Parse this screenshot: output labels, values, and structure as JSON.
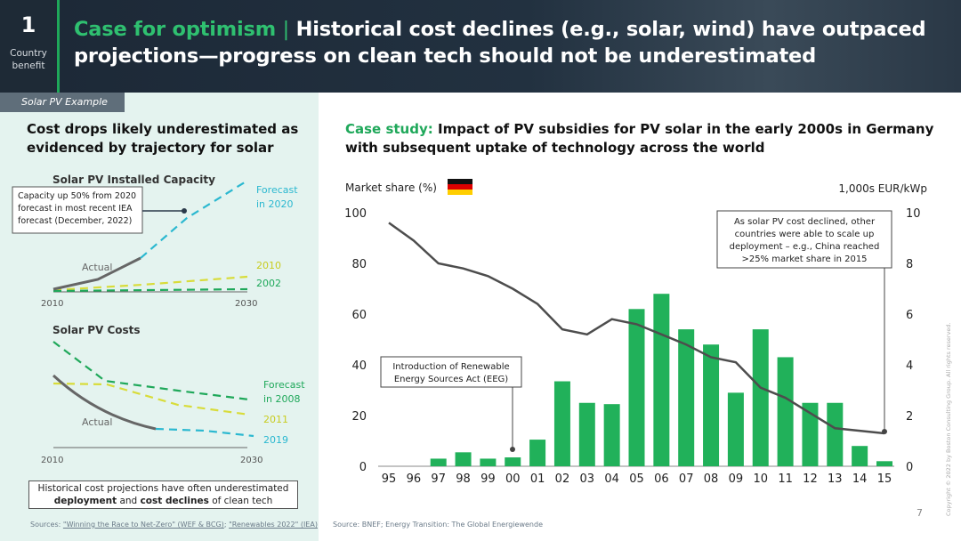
{
  "header": {
    "number": "1",
    "label_line1": "Country",
    "label_line2": "benefit",
    "title_highlight": "Case for optimism",
    "title_separator": "|",
    "title_rest": "Historical cost declines (e.g., solar, wind) have outpaced projections—progress on clean tech should not be underestimated"
  },
  "tag": "Solar PV Example",
  "left": {
    "heading": "Cost drops likely underestimated as evidenced by trajectory for solar",
    "capacity": {
      "title": "Solar PV Installed Capacity",
      "callout": "Capacity up 50% from 2020 forecast in most recent IEA forecast (December, 2022)",
      "actual_label": "Actual",
      "forecast_line1": "Forecast",
      "forecast_line2": "in 2020",
      "label_2010": "2010",
      "label_2002": "2002",
      "x_start": "2010",
      "x_end": "2030"
    },
    "costs": {
      "title": "Solar PV Costs",
      "actual_label": "Actual",
      "forecast_line1": "Forecast",
      "forecast_line2": "in 2008",
      "label_2011": "2011",
      "label_2019": "2019",
      "x_start": "2010",
      "x_end": "2030"
    },
    "note_line1": "Historical cost projections have often underestimated",
    "note_bold1": "deployment",
    "note_mid": "and",
    "note_bold2": "cost declines",
    "note_end": "of clean tech",
    "sources_prefix": "Sources:",
    "source1": "\"Winning the Race to Net-Zero\" (WEF & BCG)",
    "source_sep": ";",
    "source2": "\"Renewables 2022\" (IEA)"
  },
  "right": {
    "heading_highlight": "Case study:",
    "heading_rest": "Impact of PV subsidies for PV solar in the early 2000s in Germany with subsequent uptake of technology across the world",
    "source": "Source: BNEF; Energy Transition: The Global Energiewende"
  },
  "chart_data": {
    "type": "bar",
    "title": "",
    "ylabel_left": "Market share (%)",
    "ylabel_right": "1,000s EUR/kWp",
    "ylim_left": [
      0,
      100
    ],
    "ylim_right": [
      0,
      10
    ],
    "yticks_left": [
      "0",
      "20",
      "40",
      "60",
      "80",
      "100"
    ],
    "yticks_right": [
      "0",
      "2",
      "4",
      "6",
      "8",
      "10"
    ],
    "categories": [
      "95",
      "96",
      "97",
      "98",
      "99",
      "00",
      "01",
      "02",
      "03",
      "04",
      "05",
      "06",
      "07",
      "08",
      "09",
      "10",
      "11",
      "12",
      "13",
      "14",
      "15"
    ],
    "series": [
      {
        "name": "Germany market share (%)",
        "type": "bar",
        "axis": "left",
        "color": "#21b15a",
        "values": [
          0,
          0,
          3,
          5.5,
          3,
          3.5,
          10.5,
          33.5,
          25,
          24.5,
          62,
          68,
          54,
          48,
          29,
          54,
          43,
          25,
          25,
          8,
          2
        ]
      },
      {
        "name": "PV system cost (1,000s EUR/kWp)",
        "type": "line",
        "axis": "right",
        "color": "#4d4d4d",
        "values": [
          9.6,
          8.9,
          8.0,
          7.8,
          7.5,
          7.0,
          6.4,
          5.4,
          5.2,
          5.8,
          5.6,
          5.2,
          4.8,
          4.3,
          4.1,
          3.1,
          2.7,
          2.1,
          1.5,
          1.4,
          1.3
        ]
      }
    ],
    "annotations": [
      {
        "text_line1": "Introduction of Renewable",
        "text_line2": "Energy Sources Act (EEG)",
        "category": "00"
      },
      {
        "text_line1": "As solar PV cost declined, other",
        "text_line2": "countries were able to scale up",
        "text_line3": "deployment – e.g., China reached",
        "text_line4": ">25% market share in 2015",
        "category": "15"
      }
    ]
  },
  "page_number": "7",
  "copyright": "Copyright © 2022 by Boston Consulting Group. All rights reserved."
}
